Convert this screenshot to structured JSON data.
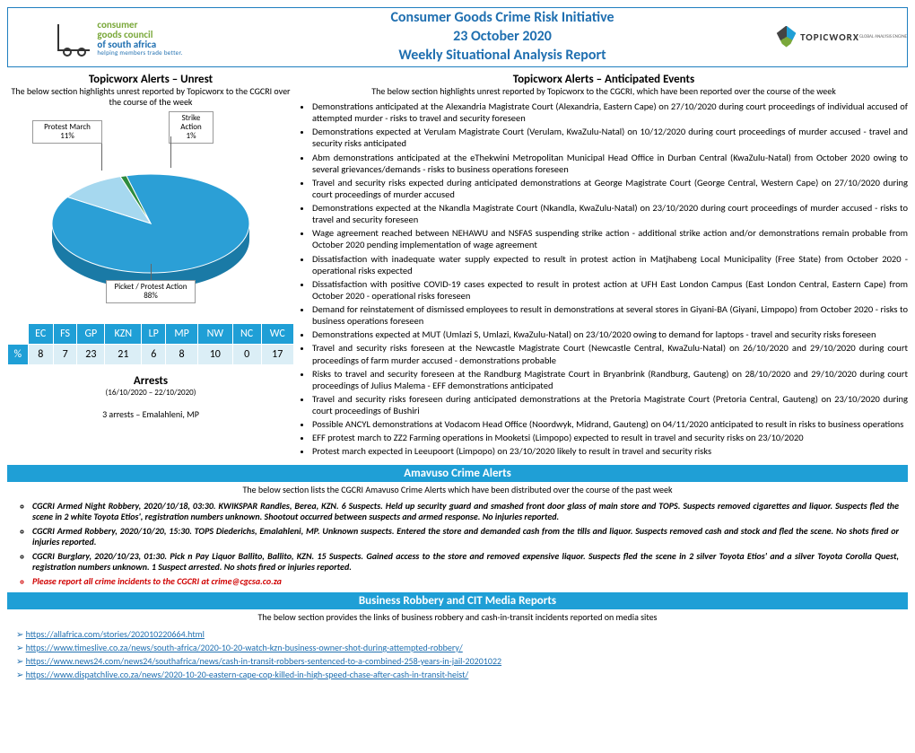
{
  "header": {
    "title_line1": "Consumer Goods Crime Risk Initiative",
    "title_line2": "23 October 2020",
    "title_line3": "Weekly Situational Analysis Report",
    "left_logo_line1": "consumer",
    "left_logo_line2": "goods council",
    "left_logo_line3": "of south africa",
    "left_logo_tag": "helping members trade better.",
    "right_logo_text": "TOPICWORX",
    "right_logo_sub": "GLOBAL ANALYSIS ENGINE",
    "title_color": "#1f6fb0",
    "border_color": "#1f7fbf"
  },
  "unrest": {
    "title": "Topicworx Alerts – Unrest",
    "sub": "The below section highlights unrest reported by Topicworx to the CGCRI over the course of the week",
    "pie": {
      "type": "pie",
      "slices": [
        {
          "label": "Picket / Protest Action",
          "value": 88,
          "color": "#2b9fd6"
        },
        {
          "label": "Protest March",
          "value": 11,
          "color": "#a6d8ef"
        },
        {
          "label": "Strike Action",
          "value": 1,
          "color": "#2e8b3d"
        }
      ],
      "background_color": "#ffffff",
      "label_fontsize": 9,
      "label_box_border": "#999999",
      "leader_color": "#666666",
      "tilt_3d": true,
      "depth_color_shade": "#1a7aa6"
    },
    "provinces": {
      "headers": [
        "",
        "EC",
        "FS",
        "GP",
        "KZN",
        "LP",
        "MP",
        "NW",
        "NC",
        "WC"
      ],
      "row_label": "%",
      "values": [
        8,
        7,
        23,
        21,
        6,
        8,
        10,
        0,
        17
      ],
      "header_bg": "#1f9fd6",
      "header_fg": "#ffffff",
      "cell_bg": "#dbeef6"
    },
    "arrests": {
      "title": "Arrests",
      "range": "(16/10/2020 – 22/10/2020)",
      "body": "3 arrests – Emalahleni, MP"
    }
  },
  "anticipated": {
    "title": "Topicworx Alerts – Anticipated Events",
    "sub": "The below section highlights unrest reported by Topicworx to the CGCRI, which have been reported over the course of the week",
    "items": [
      "Demonstrations anticipated at the Alexandria Magistrate Court (Alexandria, Eastern Cape) on 27/10/2020 during court proceedings of individual accused of attempted murder - risks to travel and security foreseen",
      "Demonstrations expected at Verulam Magistrate Court (Verulam, KwaZulu-Natal) on 10/12/2020 during court proceedings of murder accused - travel and security risks anticipated",
      "Abm demonstrations anticipated at the eThekwini Metropolitan Municipal Head Office in Durban Central (KwaZulu-Natal) from October 2020 owing to several grievances/demands - risks to business operations foreseen",
      "Travel and security risks expected during anticipated demonstrations at George Magistrate Court (George Central, Western Cape) on 27/10/2020 during court proceedings of murder accused",
      "Demonstrations expected at the Nkandla Magistrate Court (Nkandla, KwaZulu-Natal) on 23/10/2020 during court proceedings of murder accused - risks to travel and security foreseen",
      "Wage agreement reached between NEHAWU and NSFAS suspending strike action - additional strike action and/or demonstrations remain probable from October 2020 pending implementation of wage agreement",
      "Dissatisfaction with inadequate water supply expected to result in protest action in Matjhabeng Local Municipality (Free State) from October 2020 - operational risks expected",
      "Dissatisfaction with positive COVID-19 cases expected to result in protest action at UFH East London Campus (East London Central, Eastern Cape) from October 2020 - operational risks foreseen",
      "Demand for reinstatement of dismissed employees to result in demonstrations at several stores in Giyani-BA (Giyani, Limpopo) from October 2020 - risks to business operations foreseen",
      "Demonstrations expected at MUT (Umlazi S, Umlazi, KwaZulu-Natal) on 23/10/2020 owing to demand for laptops - travel and security risks foreseen",
      "Travel and security risks foreseen at the Newcastle Magistrate Court (Newcastle Central, KwaZulu-Natal) on 26/10/2020 and 29/10/2020 during court proceedings of farm murder accused - demonstrations probable",
      "Risks to travel and security foreseen at the Randburg Magistrate Court in Bryanbrink (Randburg, Gauteng) on 28/10/2020 and 29/10/2020 during court proceedings of Julius Malema - EFF demonstrations anticipated",
      "Travel and security risks foreseen during anticipated demonstrations at the Pretoria Magistrate Court (Pretoria Central, Gauteng) on 23/10/2020 during court proceedings of Bushiri",
      "Possible ANCYL demonstrations at Vodacom Head Office (Noordwyk, Midrand, Gauteng) on 04/11/2020 anticipated to result in risks to business operations",
      "EFF protest march to ZZ2 Farming operations in Mooketsi (Limpopo) expected to result in travel and security risks on 23/10/2020",
      "Protest march expected in Leeupoort (Limpopo) on 23/10/2020 likely to result in travel and security risks"
    ]
  },
  "amavuso": {
    "band": "Amavuso Crime Alerts",
    "sub": "The below section lists the CGCRI Amavuso Crime Alerts which have been distributed over the course of the past week",
    "items": [
      {
        "text": "CGCRI Armed Night Robbery, 2020/10/18, 03:30. KWIKSPAR Randles, Berea, KZN. 6 Suspects. Held up security guard and smashed front door glass of main store and TOPS. Suspects removed cigarettes and liquor. Suspects fled the scene in 2 white Toyota Etios', registration numbers unknown. Shootout occurred between suspects and armed response. No injuries reported.",
        "red": false
      },
      {
        "text": "CGCRI Armed Robbery, 2020/10/20, 15:30. TOPS Diederichs, Emalahleni, MP. Unknown suspects. Entered the store and demanded cash from the tills and liquor. Suspects removed cash and stock and fled the scene. No shots fired or injuries reported.",
        "red": false
      },
      {
        "text": "CGCRI Burglary, 2020/10/23, 01:30. Pick n Pay Liquor Ballito, Ballito, KZN. 15 Suspects. Gained access to the store and removed expensive liquor. Suspects fled the scene in 2 silver Toyota Etios' and a silver Toyota Corolla Quest, registration numbers unknown. 1 Suspect arrested. No shots fired or injuries reported.",
        "red": false
      },
      {
        "text": "Please report all crime incidents to the CGCRI at crime@cgcsa.co.za",
        "red": true
      }
    ]
  },
  "media": {
    "band": "Business Robbery and CIT Media Reports",
    "sub": "The below section provides the links of business robbery and cash-in-transit incidents reported on media sites",
    "links": [
      "https://allafrica.com/stories/202010220664.html",
      "https://www.timeslive.co.za/news/south-africa/2020-10-20-watch-kzn-business-owner-shot-during-attempted-robbery/",
      "https://www.news24.com/news24/southafrica/news/cash-in-transit-robbers-sentenced-to-a-combined-258-years-in-jail-20201022",
      "https://www.dispatchlive.co.za/news/2020-10-20-eastern-cape-cop-killed-in-high-speed-chase-after-cash-in-transit-heist/"
    ],
    "link_color": "#1f6fb0"
  },
  "colors": {
    "band_bg": "#1f9fd6",
    "band_fg": "#ffffff"
  }
}
